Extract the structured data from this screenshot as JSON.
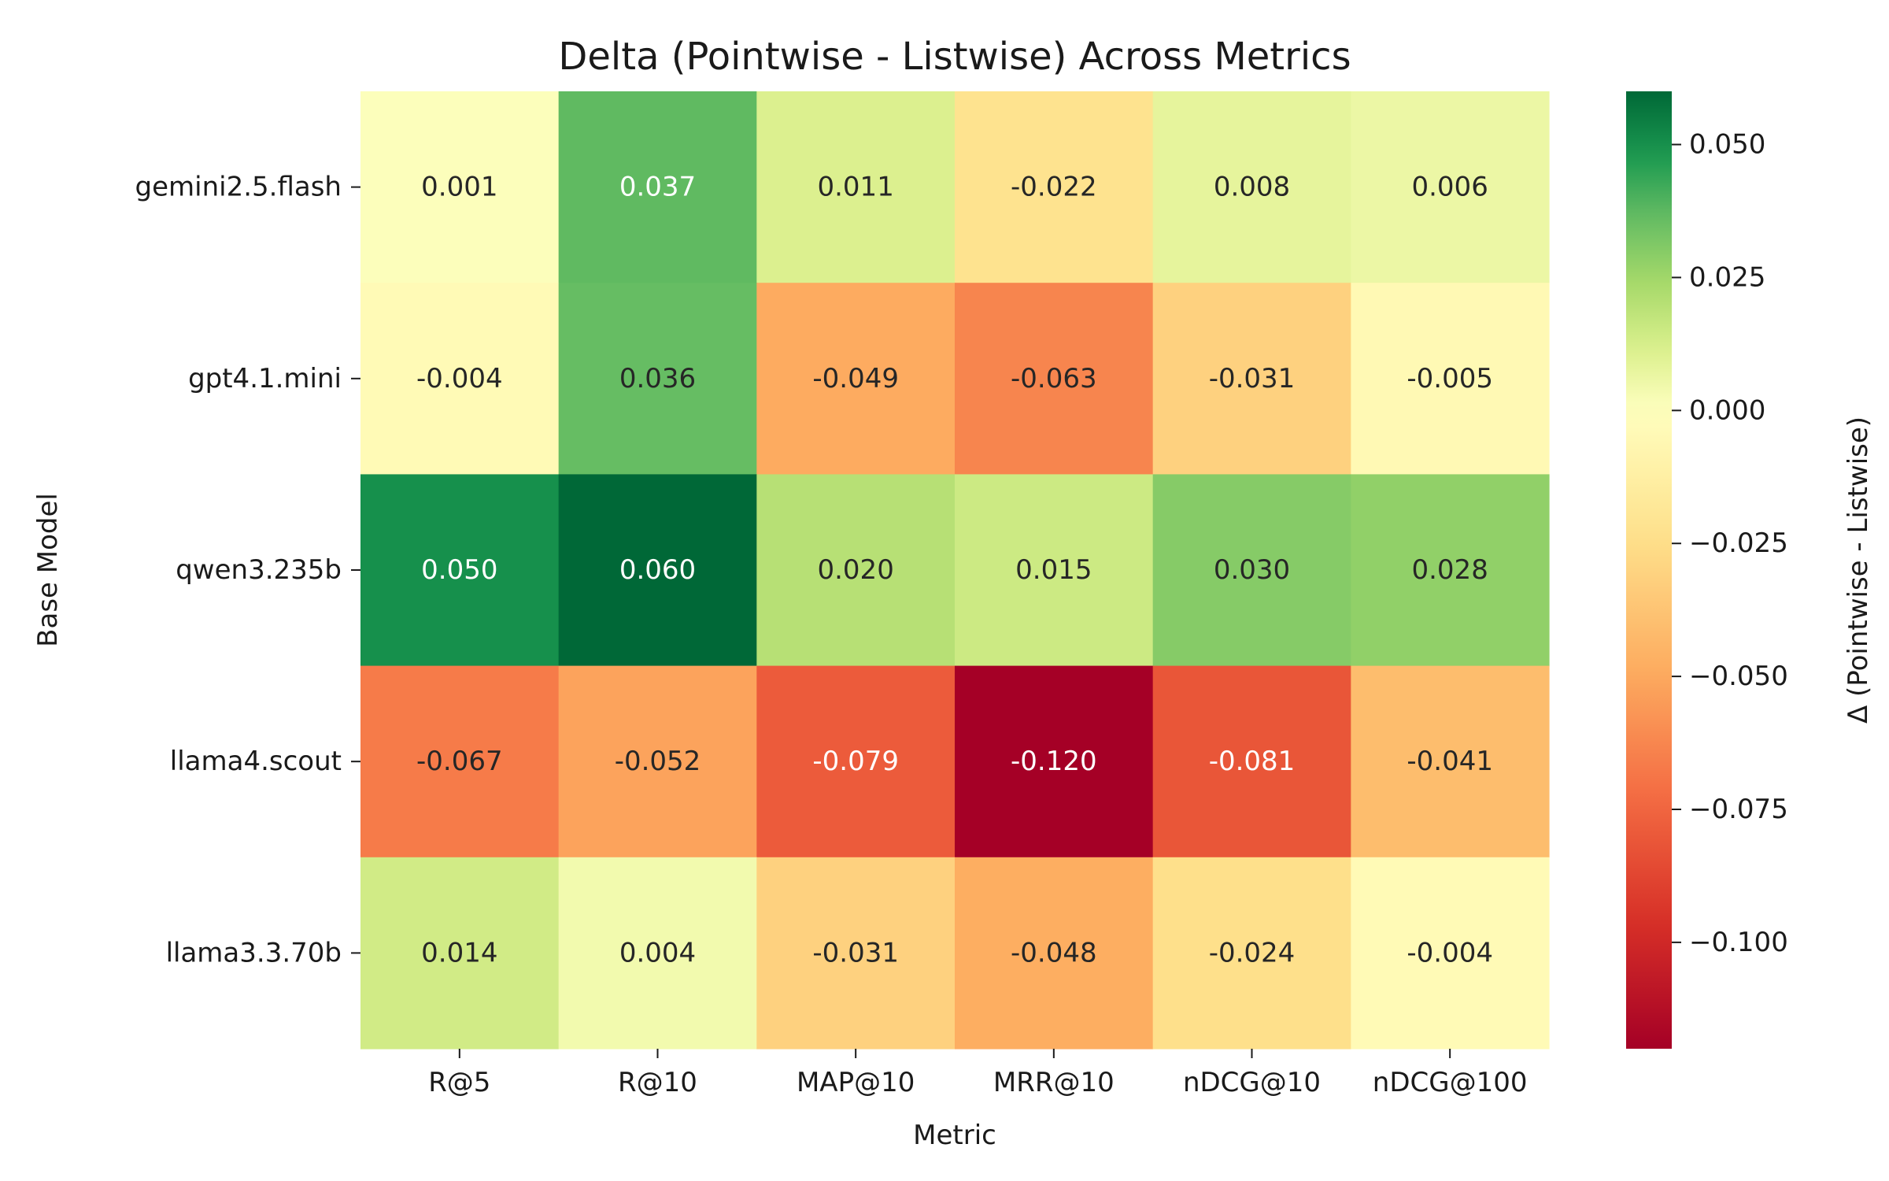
{
  "chart_data": {
    "type": "heatmap",
    "title": "Delta (Pointwise - Listwise) Across Metrics",
    "xlabel": "Metric",
    "ylabel": "Base Model",
    "x_categories": [
      "R@5",
      "R@10",
      "MAP@10",
      "MRR@10",
      "nDCG@10",
      "nDCG@100"
    ],
    "y_categories": [
      "gemini2.5.flash",
      "gpt4.1.mini",
      "qwen3.235b",
      "llama4.scout",
      "llama3.3.70b"
    ],
    "values": [
      [
        0.001,
        0.037,
        0.011,
        -0.022,
        0.008,
        0.006
      ],
      [
        -0.004,
        0.036,
        -0.049,
        -0.063,
        -0.031,
        -0.005
      ],
      [
        0.05,
        0.06,
        0.02,
        0.015,
        0.03,
        0.028
      ],
      [
        -0.067,
        -0.052,
        -0.079,
        -0.12,
        -0.081,
        -0.041
      ],
      [
        0.014,
        0.004,
        -0.031,
        -0.048,
        -0.024,
        -0.004
      ]
    ],
    "value_labels": [
      [
        "0.001",
        "0.037",
        "0.011",
        "-0.022",
        "0.008",
        "0.006"
      ],
      [
        "-0.004",
        "0.036",
        "-0.049",
        "-0.063",
        "-0.031",
        "-0.005"
      ],
      [
        "0.050",
        "0.060",
        "0.020",
        "0.015",
        "0.030",
        "0.028"
      ],
      [
        "-0.067",
        "-0.052",
        "-0.079",
        "-0.120",
        "-0.081",
        "-0.041"
      ],
      [
        "0.014",
        "0.004",
        "-0.031",
        "-0.048",
        "-0.024",
        "-0.004"
      ]
    ],
    "colormap": "RdYlGn",
    "colormap_stops": [
      "#a50026",
      "#d73027",
      "#f46d43",
      "#fdae61",
      "#fee08b",
      "#ffffbf",
      "#d9ef8b",
      "#a6d96a",
      "#66bd63",
      "#1a9850",
      "#006837"
    ],
    "color_range": [
      -0.12,
      0.06
    ],
    "norm_center": 0.0,
    "colorbar": {
      "label": "Δ (Pointwise - Listwise)",
      "ticks": [
        0.05,
        0.025,
        0.0,
        -0.025,
        -0.05,
        -0.075,
        -0.1
      ],
      "tick_labels": [
        "0.050",
        "0.025",
        "0.000",
        "−0.025",
        "−0.050",
        "−0.075",
        "−0.100"
      ]
    }
  }
}
